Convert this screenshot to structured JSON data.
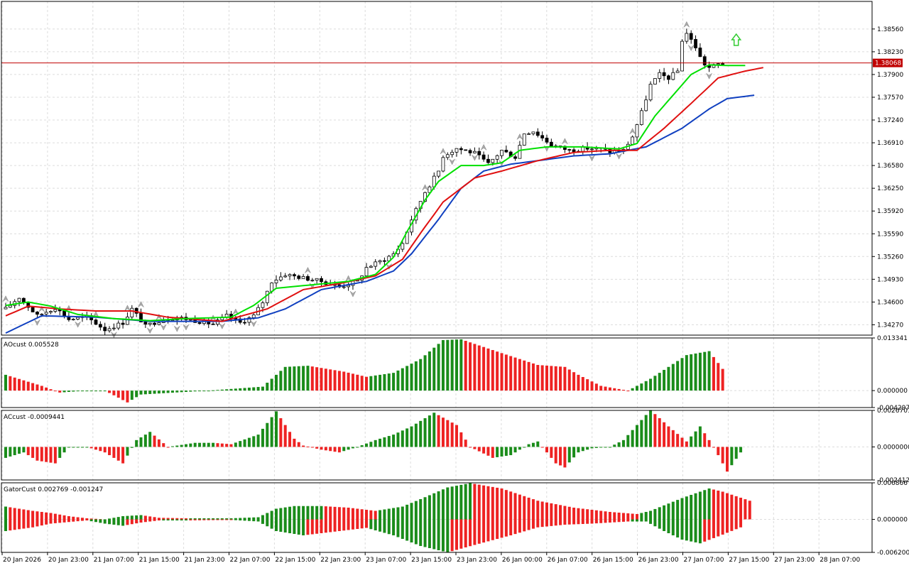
{
  "colors": {
    "background": "#ffffff",
    "grid": "#dcdcdc",
    "frame": "#000000",
    "candle_outline": "#000000",
    "bull_fill": "#ffffff",
    "bear_fill": "#000000",
    "alligator_lips": "#00e000",
    "alligator_teeth": "#e01010",
    "alligator_jaw": "#1040c0",
    "bid_line": "#c00000",
    "bar_up": "#1a8c1a",
    "bar_down": "#ee2222",
    "fractal": "#a8a8a8",
    "signal_arrow": "#33cc33"
  },
  "chart_data": [
    {
      "id": "main",
      "type": "candlestick",
      "y_range": [
        1.3412,
        1.3896
      ],
      "y_ticks": [
        "1.38560",
        "1.38230",
        "1.37900",
        "1.37570",
        "1.37240",
        "1.36910",
        "1.36580",
        "1.36250",
        "1.35920",
        "1.35590",
        "1.35260",
        "1.34930",
        "1.34600",
        "1.34270"
      ],
      "current_price": "1.38068",
      "x_labels": [
        "20 Jan 2026",
        "20 Jan 23:00",
        "21 Jan 07:00",
        "21 Jan 15:00",
        "21 Jan 23:00",
        "22 Jan 07:00",
        "22 Jan 15:00",
        "22 Jan 23:00",
        "23 Jan 07:00",
        "23 Jan 15:00",
        "23 Jan 23:00",
        "26 Jan 00:00",
        "26 Jan 07:00",
        "26 Jan 15:00",
        "26 Jan 23:00",
        "27 Jan 07:00",
        "27 Jan 15:00",
        "27 Jan 23:00",
        "28 Jan 07:00"
      ],
      "anchors": [
        [
          0,
          1.345
        ],
        [
          3,
          1.3467
        ],
        [
          7,
          1.344
        ],
        [
          11,
          1.3452
        ],
        [
          14,
          1.3435
        ],
        [
          18,
          1.3438
        ],
        [
          22,
          1.342
        ],
        [
          26,
          1.343
        ],
        [
          28,
          1.345
        ],
        [
          31,
          1.3425
        ],
        [
          34,
          1.3433
        ],
        [
          38,
          1.3438
        ],
        [
          42,
          1.3433
        ],
        [
          46,
          1.3428
        ],
        [
          49,
          1.344
        ],
        [
          52,
          1.343
        ],
        [
          55,
          1.344
        ],
        [
          57,
          1.346
        ],
        [
          59,
          1.349
        ],
        [
          62,
          1.35
        ],
        [
          66,
          1.3495
        ],
        [
          70,
          1.349
        ],
        [
          74,
          1.3482
        ],
        [
          78,
          1.349
        ],
        [
          80,
          1.351
        ],
        [
          84,
          1.3522
        ],
        [
          86,
          1.353
        ],
        [
          88,
          1.3545
        ],
        [
          90,
          1.358
        ],
        [
          93,
          1.362
        ],
        [
          96,
          1.365
        ],
        [
          97,
          1.3672
        ],
        [
          100,
          1.3683
        ],
        [
          104,
          1.3676
        ],
        [
          107,
          1.366
        ],
        [
          110,
          1.368
        ],
        [
          113,
          1.367
        ],
        [
          115,
          1.3705
        ],
        [
          117,
          1.3708
        ],
        [
          121,
          1.3688
        ],
        [
          125,
          1.368
        ],
        [
          129,
          1.3683
        ],
        [
          132,
          1.3682
        ],
        [
          134,
          1.3678
        ],
        [
          137,
          1.368
        ],
        [
          139,
          1.37
        ],
        [
          141,
          1.3735
        ],
        [
          143,
          1.3775
        ],
        [
          145,
          1.379
        ],
        [
          147,
          1.3785
        ],
        [
          149,
          1.3795
        ],
        [
          150,
          1.384
        ],
        [
          151,
          1.385
        ],
        [
          153,
          1.383
        ],
        [
          154,
          1.3815
        ],
        [
          155,
          1.3805
        ],
        [
          156,
          1.38
        ],
        [
          158,
          1.3805
        ],
        [
          159,
          1.38068
        ]
      ],
      "alligator": {
        "jaw": [
          [
            0,
            1.3415
          ],
          [
            8,
            1.344
          ],
          [
            20,
            1.3438
          ],
          [
            32,
            1.3432
          ],
          [
            48,
            1.3432
          ],
          [
            56,
            1.3437
          ],
          [
            62,
            1.345
          ],
          [
            70,
            1.3478
          ],
          [
            80,
            1.349
          ],
          [
            86,
            1.3505
          ],
          [
            90,
            1.353
          ],
          [
            96,
            1.358
          ],
          [
            101,
            1.3625
          ],
          [
            106,
            1.365
          ],
          [
            112,
            1.366
          ],
          [
            118,
            1.3665
          ],
          [
            126,
            1.3672
          ],
          [
            134,
            1.3675
          ],
          [
            142,
            1.3685
          ],
          [
            150,
            1.3712
          ],
          [
            156,
            1.374
          ],
          [
            160,
            1.3755
          ],
          [
            166,
            1.376
          ]
        ],
        "teeth": [
          [
            0,
            1.344
          ],
          [
            5,
            1.3454
          ],
          [
            12,
            1.345
          ],
          [
            20,
            1.3447
          ],
          [
            28,
            1.3447
          ],
          [
            36,
            1.3438
          ],
          [
            48,
            1.3432
          ],
          [
            58,
            1.345
          ],
          [
            66,
            1.3478
          ],
          [
            75,
            1.3488
          ],
          [
            82,
            1.3498
          ],
          [
            88,
            1.3522
          ],
          [
            92,
            1.356
          ],
          [
            97,
            1.3605
          ],
          [
            104,
            1.364
          ],
          [
            110,
            1.365
          ],
          [
            118,
            1.3665
          ],
          [
            126,
            1.3677
          ],
          [
            134,
            1.368
          ],
          [
            140,
            1.368
          ],
          [
            146,
            1.3712
          ],
          [
            152,
            1.3748
          ],
          [
            158,
            1.3785
          ],
          [
            164,
            1.3795
          ],
          [
            168,
            1.38
          ]
        ],
        "lips": [
          [
            0,
            1.3455
          ],
          [
            5,
            1.346
          ],
          [
            10,
            1.3454
          ],
          [
            16,
            1.3442
          ],
          [
            24,
            1.3436
          ],
          [
            32,
            1.3433
          ],
          [
            40,
            1.3436
          ],
          [
            50,
            1.3438
          ],
          [
            55,
            1.3455
          ],
          [
            60,
            1.348
          ],
          [
            68,
            1.3485
          ],
          [
            76,
            1.349
          ],
          [
            82,
            1.35
          ],
          [
            86,
            1.3525
          ],
          [
            89,
            1.3562
          ],
          [
            93,
            1.3608
          ],
          [
            96,
            1.3635
          ],
          [
            101,
            1.3658
          ],
          [
            106,
            1.3658
          ],
          [
            110,
            1.3662
          ],
          [
            114,
            1.368
          ],
          [
            120,
            1.3685
          ],
          [
            128,
            1.3685
          ],
          [
            136,
            1.3682
          ],
          [
            140,
            1.369
          ],
          [
            144,
            1.373
          ],
          [
            148,
            1.376
          ],
          [
            152,
            1.379
          ],
          [
            156,
            1.3804
          ],
          [
            160,
            1.3803
          ],
          [
            164,
            1.3803
          ]
        ]
      },
      "fractals_up": [
        0,
        8,
        14,
        20,
        27,
        30,
        34,
        46,
        51,
        67,
        76,
        93,
        97,
        106,
        114,
        124,
        139,
        151
      ],
      "fractals_down": [
        7,
        16,
        24,
        32,
        35,
        38,
        40,
        48,
        55,
        68,
        77,
        85,
        99,
        104,
        110,
        120,
        130,
        136,
        152,
        156
      ],
      "signal_arrow_up_at": 162
    },
    {
      "id": "ao",
      "type": "bar",
      "label": "AOcust 0.005528",
      "y_range": [
        -0.004297,
        0.013341
      ],
      "y_ticks": [
        "0.013341",
        "0.000000",
        "-0.004297"
      ],
      "anchors": [
        [
          0,
          0.004
        ],
        [
          8,
          0.0012
        ],
        [
          12,
          -0.0005
        ],
        [
          18,
          0.0
        ],
        [
          22,
          0.0
        ],
        [
          27,
          -0.003
        ],
        [
          30,
          -0.001
        ],
        [
          45,
          0.0
        ],
        [
          57,
          0.001
        ],
        [
          62,
          0.006
        ],
        [
          67,
          0.0063
        ],
        [
          75,
          0.0048
        ],
        [
          80,
          0.0035
        ],
        [
          86,
          0.0045
        ],
        [
          92,
          0.008
        ],
        [
          97,
          0.0128
        ],
        [
          101,
          0.013
        ],
        [
          110,
          0.0095
        ],
        [
          118,
          0.0065
        ],
        [
          124,
          0.006
        ],
        [
          127,
          0.004
        ],
        [
          132,
          0.0012
        ],
        [
          138,
          0.0
        ],
        [
          143,
          0.003
        ],
        [
          151,
          0.009
        ],
        [
          156,
          0.01
        ],
        [
          159,
          0.0055
        ]
      ]
    },
    {
      "id": "ac",
      "type": "bar",
      "label": "ACcust -0.0009441",
      "y_range": [
        -0.0024127,
        0.0026701
      ],
      "y_ticks": [
        "0.0026701",
        "0.0000000",
        "-0.0024127"
      ],
      "anchors": [
        [
          0,
          -0.0008
        ],
        [
          4,
          -0.0004
        ],
        [
          7,
          -0.001
        ],
        [
          11,
          -0.0012
        ],
        [
          14,
          0.0
        ],
        [
          18,
          0.0
        ],
        [
          22,
          -0.0004
        ],
        [
          26,
          -0.0012
        ],
        [
          29,
          0.0005
        ],
        [
          32,
          0.0011
        ],
        [
          36,
          0.0
        ],
        [
          42,
          0.0003
        ],
        [
          46,
          0.0003
        ],
        [
          50,
          0.0002
        ],
        [
          56,
          0.0009
        ],
        [
          60,
          0.0026
        ],
        [
          64,
          0.0006
        ],
        [
          66,
          0.0001
        ],
        [
          70,
          -0.0002
        ],
        [
          74,
          -0.0004
        ],
        [
          78,
          0.0
        ],
        [
          82,
          0.0005
        ],
        [
          86,
          0.0009
        ],
        [
          90,
          0.0015
        ],
        [
          95,
          0.0025
        ],
        [
          100,
          0.0016
        ],
        [
          103,
          0.0
        ],
        [
          108,
          -0.0008
        ],
        [
          112,
          -0.0006
        ],
        [
          116,
          0.0002
        ],
        [
          118,
          0.0004
        ],
        [
          122,
          -0.0012
        ],
        [
          124,
          -0.0015
        ],
        [
          127,
          -0.0004
        ],
        [
          130,
          -0.0001
        ],
        [
          134,
          0.0
        ],
        [
          137,
          0.0005
        ],
        [
          143,
          0.0027
        ],
        [
          147,
          0.0015
        ],
        [
          151,
          0.0004
        ],
        [
          154,
          0.0015
        ],
        [
          157,
          0.0
        ],
        [
          160,
          -0.0018
        ],
        [
          163,
          -0.0004
        ]
      ]
    },
    {
      "id": "gator",
      "type": "histogram",
      "label": "GatorCust 0.002769 -0.001247",
      "y_range": [
        -0.0062,
        0.006866
      ],
      "y_ticks": [
        "0.006866",
        "0.000000",
        "-0.006200"
      ],
      "upper_anchors": [
        [
          0,
          0.0024
        ],
        [
          6,
          0.0016
        ],
        [
          10,
          0.0012
        ],
        [
          14,
          0.0006
        ],
        [
          18,
          0.0002
        ],
        [
          22,
          0.0
        ],
        [
          26,
          0.0006
        ],
        [
          30,
          0.0008
        ],
        [
          34,
          0.0003
        ],
        [
          40,
          0.0002
        ],
        [
          50,
          0.0002
        ],
        [
          56,
          0.0004
        ],
        [
          60,
          0.002
        ],
        [
          64,
          0.0025
        ],
        [
          70,
          0.0025
        ],
        [
          76,
          0.0022
        ],
        [
          82,
          0.0016
        ],
        [
          88,
          0.0024
        ],
        [
          92,
          0.0038
        ],
        [
          98,
          0.006
        ],
        [
          103,
          0.0068
        ],
        [
          110,
          0.0058
        ],
        [
          118,
          0.0035
        ],
        [
          126,
          0.0022
        ],
        [
          134,
          0.0014
        ],
        [
          140,
          0.001
        ],
        [
          143,
          0.0016
        ],
        [
          150,
          0.004
        ],
        [
          156,
          0.0058
        ],
        [
          159,
          0.0052
        ],
        [
          165,
          0.0035
        ]
      ],
      "lower_anchors": [
        [
          0,
          -0.0022
        ],
        [
          6,
          -0.0015
        ],
        [
          10,
          -0.0008
        ],
        [
          14,
          -0.0005
        ],
        [
          18,
          -0.0002
        ],
        [
          22,
          -0.0008
        ],
        [
          26,
          -0.0012
        ],
        [
          30,
          -0.0006
        ],
        [
          34,
          -0.0002
        ],
        [
          40,
          -0.0002
        ],
        [
          50,
          -0.0001
        ],
        [
          56,
          -0.0004
        ],
        [
          60,
          -0.0022
        ],
        [
          66,
          -0.003
        ],
        [
          72,
          -0.0024
        ],
        [
          80,
          -0.0016
        ],
        [
          86,
          -0.003
        ],
        [
          92,
          -0.005
        ],
        [
          98,
          -0.0062
        ],
        [
          104,
          -0.0048
        ],
        [
          112,
          -0.003
        ],
        [
          118,
          -0.0015
        ],
        [
          124,
          -0.001
        ],
        [
          130,
          -0.0008
        ],
        [
          138,
          -0.0004
        ],
        [
          142,
          -0.0004
        ],
        [
          146,
          -0.0022
        ],
        [
          150,
          -0.0038
        ],
        [
          154,
          -0.0045
        ],
        [
          158,
          -0.0032
        ],
        [
          163,
          -0.0015
        ]
      ]
    }
  ]
}
